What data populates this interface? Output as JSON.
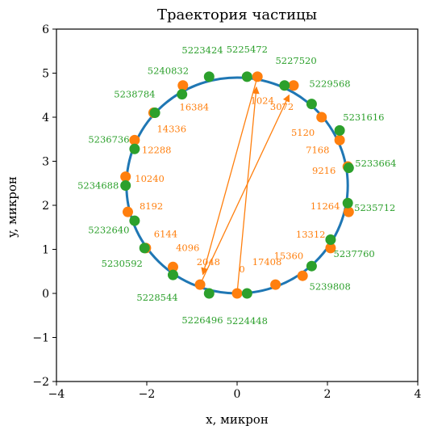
{
  "chart_data": {
    "type": "scatter",
    "title": "Траектория частицы",
    "xlabel": "x, микрон",
    "ylabel": "y, микрон",
    "xlim": [
      -4,
      4
    ],
    "ylim": [
      -2,
      6
    ],
    "x_ticks": [
      "−4",
      "−2",
      "0",
      "2",
      "4"
    ],
    "y_ticks": [
      "−2",
      "−1",
      "0",
      "1",
      "2",
      "3",
      "4",
      "5",
      "6"
    ],
    "grid": false,
    "trajectory": {
      "shape": "circle",
      "center": [
        0,
        2.45
      ],
      "radius": 2.45,
      "color": "#1f77b4"
    },
    "series": [
      {
        "color": "#ff7f0e",
        "points": [
          {
            "label": "0",
            "x": 0.0,
            "y": 0.0
          },
          {
            "label": "1024",
            "x": 0.45,
            "y": 4.92
          },
          {
            "label": "2048",
            "x": -0.82,
            "y": 0.2
          },
          {
            "label": "3072",
            "x": 1.25,
            "y": 4.72
          },
          {
            "label": "4096",
            "x": -1.42,
            "y": 0.6
          },
          {
            "label": "5120",
            "x": 1.87,
            "y": 4.0
          },
          {
            "label": "6144",
            "x": -2.02,
            "y": 1.03
          },
          {
            "label": "7168",
            "x": 2.27,
            "y": 3.48
          },
          {
            "label": "8192",
            "x": -2.42,
            "y": 1.85
          },
          {
            "label": "9216",
            "x": 2.45,
            "y": 2.88
          },
          {
            "label": "10240",
            "x": -2.47,
            "y": 2.65
          },
          {
            "label": "11264",
            "x": 2.47,
            "y": 1.85
          },
          {
            "label": "12288",
            "x": -2.27,
            "y": 3.48
          },
          {
            "label": "13312",
            "x": 2.07,
            "y": 1.03
          },
          {
            "label": "14336",
            "x": -1.85,
            "y": 4.1
          },
          {
            "label": "15360",
            "x": 1.45,
            "y": 0.4
          },
          {
            "label": "16384",
            "x": -1.2,
            "y": 4.72
          },
          {
            "label": "17408",
            "x": 0.85,
            "y": 0.2
          }
        ]
      },
      {
        "color": "#2ca02c",
        "points": [
          {
            "label": "5223424",
            "x": -0.62,
            "y": 4.92
          },
          {
            "label": "5224448",
            "x": 0.22,
            "y": 0.0
          },
          {
            "label": "5225472",
            "x": 0.22,
            "y": 4.92
          },
          {
            "label": "5226496",
            "x": -0.62,
            "y": 0.0
          },
          {
            "label": "5227520",
            "x": 1.05,
            "y": 4.72
          },
          {
            "label": "5228544",
            "x": -1.42,
            "y": 0.42
          },
          {
            "label": "5229568",
            "x": 1.65,
            "y": 4.3
          },
          {
            "label": "5230592",
            "x": -2.05,
            "y": 1.03
          },
          {
            "label": "5231616",
            "x": 2.27,
            "y": 3.7
          },
          {
            "label": "5232640",
            "x": -2.27,
            "y": 1.65
          },
          {
            "label": "5233664",
            "x": 2.47,
            "y": 2.85
          },
          {
            "label": "5234688",
            "x": -2.47,
            "y": 2.45
          },
          {
            "label": "5235712",
            "x": 2.45,
            "y": 2.05
          },
          {
            "label": "5236736",
            "x": -2.27,
            "y": 3.28
          },
          {
            "label": "5237760",
            "x": 2.07,
            "y": 1.22
          },
          {
            "label": "5238784",
            "x": -1.82,
            "y": 4.1
          },
          {
            "label": "5239808",
            "x": 1.65,
            "y": 0.62
          },
          {
            "label": "5240832",
            "x": -1.22,
            "y": 4.52
          }
        ]
      }
    ],
    "arrows": [
      {
        "from": "0",
        "to": "1024"
      },
      {
        "from": "1024",
        "to": "2048"
      },
      {
        "from": "2048",
        "to": "3072"
      }
    ]
  }
}
